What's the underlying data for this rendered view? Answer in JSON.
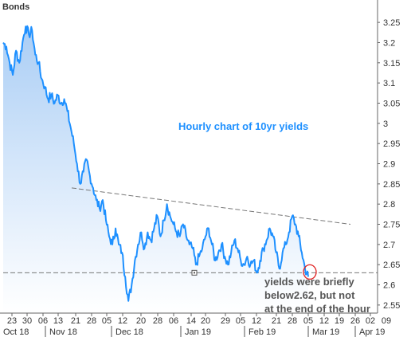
{
  "chart_data": {
    "type": "area",
    "title": "Bonds",
    "annotations": {
      "headline": "Hourly chart of 10yr yields",
      "note_lines": [
        "yields were briefly",
        "below2.62, but not",
        "at the end of the hour"
      ]
    },
    "y_ticks": [
      "3.25",
      "3.2",
      "3.15",
      "3.1",
      "3.05",
      "3",
      "2.95",
      "2.9",
      "2.85",
      "2.8",
      "2.75",
      "2.7",
      "2.65",
      "2.6",
      "2.55"
    ],
    "ylim": [
      2.53,
      3.27
    ],
    "x_day_ticks": [
      "23",
      "30",
      "06",
      "13",
      "21",
      "28",
      "05",
      "12",
      "20",
      "28",
      "06",
      "14",
      "20",
      "29",
      "05",
      "12",
      "21",
      "28",
      "05",
      "12",
      "19",
      "26",
      "02",
      "09"
    ],
    "x_month_labels": [
      "Oct 18",
      "Nov 18",
      "Dec 18",
      "Jan 19",
      "Feb 19",
      "Mar 19",
      "Apr 19"
    ],
    "series": [
      {
        "values": [
          3.2,
          3.19,
          3.15,
          3.12,
          3.18,
          3.15,
          3.2,
          3.24,
          3.22,
          3.23,
          3.17,
          3.15,
          3.11,
          3.09,
          3.06,
          3.07,
          3.05,
          3.07,
          3.05,
          3.06,
          3.03,
          2.99,
          2.95,
          2.9,
          2.85,
          2.88,
          2.91,
          2.87,
          2.84,
          2.81,
          2.79,
          2.81,
          2.76,
          2.72,
          2.7,
          2.74,
          2.7,
          2.68,
          2.62,
          2.56,
          2.6,
          2.66,
          2.7,
          2.73,
          2.69,
          2.73,
          2.71,
          2.74,
          2.77,
          2.72,
          2.76,
          2.8,
          2.77,
          2.75,
          2.73,
          2.72,
          2.75,
          2.72,
          2.7,
          2.69,
          2.65,
          2.67,
          2.69,
          2.72,
          2.74,
          2.7,
          2.66,
          2.68,
          2.7,
          2.67,
          2.65,
          2.68,
          2.71,
          2.69,
          2.66,
          2.65,
          2.67,
          2.65,
          2.66,
          2.63,
          2.66,
          2.69,
          2.71,
          2.74,
          2.72,
          2.68,
          2.64,
          2.68,
          2.7,
          2.73,
          2.77,
          2.75,
          2.72,
          2.68,
          2.64,
          2.62
        ]
      }
    ],
    "reference_lines": [
      {
        "style": "dashed",
        "from": [
          1.0,
          2.84
        ],
        "to": [
          72.0,
          2.75
        ]
      },
      {
        "style": "dashed",
        "horizontal": true,
        "y": 2.63
      }
    ],
    "highlight": {
      "index": 95,
      "value": 2.62,
      "color": "#e02020"
    },
    "grid": false,
    "colors": {
      "line": "#1e90ff",
      "area_top": "#a9cdf5",
      "area_bottom": "#ffffff",
      "trendline": "#777777",
      "axis": "#666666"
    }
  }
}
